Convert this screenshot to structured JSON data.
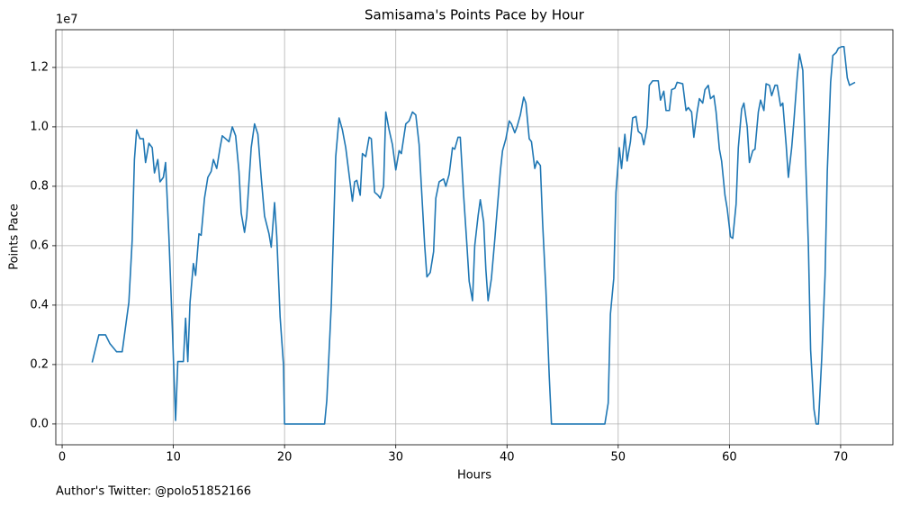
{
  "chart_data": {
    "type": "line",
    "title": "Samisama's Points Pace by Hour",
    "x_label": "Hours",
    "y_label": "Points Pace",
    "y_offset_label": "1e7",
    "footnote": "Author's Twitter: @polo51852166",
    "color": "#1f77b4",
    "grid": true,
    "xlim": [
      -0.57,
      74.7
    ],
    "ylim": [
      -0.07,
      1.327
    ],
    "xticks": [
      0,
      10,
      20,
      30,
      40,
      50,
      60,
      70
    ],
    "yticks": [
      {
        "value": 0,
        "label": "0.0"
      },
      0.2,
      0.4,
      0.6,
      0.8,
      {
        "value": 1,
        "label": "1.0"
      },
      1.2
    ],
    "x": [
      2.7,
      3.3,
      3.9,
      4.3,
      4.9,
      5.4,
      6.0,
      6.3,
      6.5,
      6.7,
      7.0,
      7.3,
      7.5,
      7.8,
      8.1,
      8.3,
      8.6,
      8.8,
      9.1,
      9.3,
      9.6,
      9.9,
      10.2,
      10.4,
      10.9,
      11.1,
      11.3,
      11.5,
      11.8,
      12.0,
      12.3,
      12.5,
      12.8,
      13.1,
      13.4,
      13.6,
      13.9,
      14.2,
      14.4,
      15.0,
      15.3,
      15.6,
      15.9,
      16.1,
      16.4,
      16.6,
      17.0,
      17.3,
      17.6,
      17.9,
      18.2,
      18.6,
      18.8,
      19.1,
      19.3,
      19.6,
      19.9,
      20.0,
      23.6,
      23.8,
      24.2,
      24.6,
      24.9,
      25.2,
      25.5,
      25.8,
      26.1,
      26.3,
      26.5,
      26.8,
      27.0,
      27.3,
      27.6,
      27.8,
      28.1,
      28.4,
      28.6,
      28.9,
      29.1,
      29.4,
      29.7,
      30.0,
      30.3,
      30.5,
      30.9,
      31.2,
      31.5,
      31.8,
      32.1,
      32.3,
      32.6,
      32.8,
      33.1,
      33.4,
      33.6,
      33.9,
      34.3,
      34.5,
      34.8,
      35.1,
      35.3,
      35.6,
      35.8,
      36.1,
      36.4,
      36.6,
      36.9,
      37.1,
      37.4,
      37.6,
      37.9,
      38.1,
      38.3,
      38.6,
      38.9,
      39.4,
      39.6,
      39.9,
      40.2,
      40.4,
      40.7,
      40.9,
      41.2,
      41.5,
      41.7,
      42.0,
      42.2,
      42.5,
      42.7,
      43.0,
      43.2,
      43.5,
      43.8,
      44.0,
      48.8,
      49.1,
      49.3,
      49.6,
      49.8,
      50.1,
      50.3,
      50.6,
      50.8,
      51.1,
      51.3,
      51.6,
      51.8,
      52.1,
      52.3,
      52.6,
      52.8,
      53.1,
      53.6,
      53.8,
      54.1,
      54.3,
      54.6,
      54.8,
      55.1,
      55.3,
      55.8,
      56.1,
      56.3,
      56.6,
      56.8,
      57.1,
      57.3,
      57.6,
      57.8,
      58.1,
      58.3,
      58.6,
      58.8,
      59.1,
      59.3,
      59.6,
      59.8,
      60.1,
      60.3,
      60.6,
      60.8,
      61.1,
      61.3,
      61.6,
      61.8,
      62.1,
      62.3,
      62.6,
      62.8,
      63.1,
      63.3,
      63.6,
      63.8,
      64.1,
      64.3,
      64.6,
      64.8,
      65.1,
      65.3,
      65.6,
      65.8,
      66.1,
      66.3,
      66.6,
      66.8,
      67.1,
      67.3,
      67.6,
      67.8,
      68.0,
      68.3,
      68.6,
      68.8,
      69.1,
      69.3,
      69.6,
      69.8,
      70.1,
      70.3,
      70.6,
      70.8,
      71.3
    ],
    "values": [
      0.207,
      0.3,
      0.3,
      0.27,
      0.243,
      0.243,
      0.41,
      0.62,
      0.89,
      0.99,
      0.96,
      0.96,
      0.88,
      0.945,
      0.93,
      0.845,
      0.89,
      0.815,
      0.83,
      0.88,
      0.63,
      0.33,
      0.012,
      0.21,
      0.21,
      0.356,
      0.21,
      0.41,
      0.54,
      0.5,
      0.64,
      0.635,
      0.76,
      0.83,
      0.85,
      0.89,
      0.86,
      0.93,
      0.97,
      0.95,
      1.0,
      0.97,
      0.85,
      0.71,
      0.645,
      0.7,
      0.93,
      1.01,
      0.975,
      0.83,
      0.7,
      0.64,
      0.595,
      0.745,
      0.63,
      0.36,
      0.2,
      0.0,
      0.0,
      0.08,
      0.4,
      0.9,
      1.03,
      0.99,
      0.93,
      0.84,
      0.75,
      0.815,
      0.82,
      0.77,
      0.91,
      0.9,
      0.965,
      0.96,
      0.78,
      0.77,
      0.76,
      0.8,
      1.05,
      0.99,
      0.94,
      0.855,
      0.92,
      0.91,
      1.01,
      1.02,
      1.05,
      1.04,
      0.94,
      0.8,
      0.6,
      0.495,
      0.51,
      0.58,
      0.76,
      0.815,
      0.825,
      0.8,
      0.84,
      0.93,
      0.925,
      0.965,
      0.965,
      0.77,
      0.6,
      0.48,
      0.415,
      0.6,
      0.7,
      0.755,
      0.68,
      0.52,
      0.415,
      0.49,
      0.62,
      0.85,
      0.92,
      0.96,
      1.02,
      1.01,
      0.98,
      1.0,
      1.04,
      1.1,
      1.08,
      0.96,
      0.95,
      0.86,
      0.885,
      0.87,
      0.68,
      0.45,
      0.16,
      0.0,
      0.0,
      0.07,
      0.37,
      0.49,
      0.78,
      0.93,
      0.86,
      0.975,
      0.885,
      0.95,
      1.03,
      1.035,
      0.985,
      0.975,
      0.94,
      1.0,
      1.14,
      1.155,
      1.155,
      1.09,
      1.12,
      1.055,
      1.055,
      1.125,
      1.13,
      1.15,
      1.145,
      1.055,
      1.065,
      1.05,
      0.965,
      1.05,
      1.095,
      1.08,
      1.125,
      1.14,
      1.095,
      1.105,
      1.05,
      0.925,
      0.885,
      0.77,
      0.725,
      0.63,
      0.625,
      0.74,
      0.93,
      1.06,
      1.08,
      1.0,
      0.88,
      0.92,
      0.925,
      1.05,
      1.09,
      1.055,
      1.145,
      1.14,
      1.105,
      1.14,
      1.14,
      1.07,
      1.08,
      0.94,
      0.83,
      0.93,
      1.02,
      1.17,
      1.245,
      1.19,
      0.95,
      0.6,
      0.25,
      0.05,
      0.0,
      0.0,
      0.22,
      0.5,
      0.85,
      1.15,
      1.24,
      1.25,
      1.265,
      1.27,
      1.27,
      1.165,
      1.14,
      1.15
    ]
  }
}
